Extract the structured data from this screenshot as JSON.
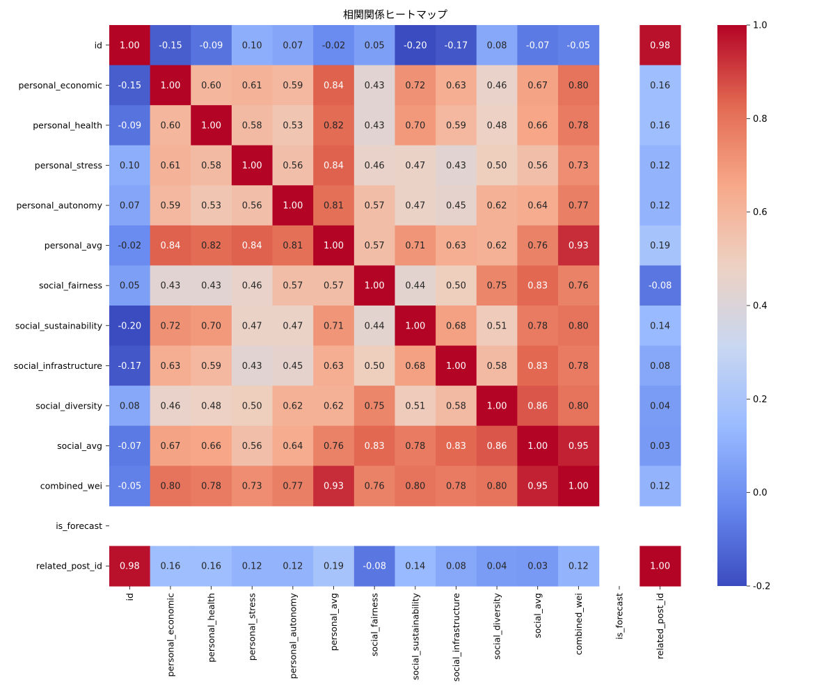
{
  "chart_data": {
    "type": "heatmap",
    "title": "相関関係ヒートマップ",
    "row_labels": [
      "id",
      "personal_economic",
      "personal_health",
      "personal_stress",
      "personal_autonomy",
      "personal_avg",
      "social_fairness",
      "social_sustainability",
      "social_infrastructure",
      "social_diversity",
      "social_avg",
      "combined_wei",
      "is_forecast",
      "related_post_id"
    ],
    "col_labels": [
      "id",
      "personal_economic",
      "personal_health",
      "personal_stress",
      "personal_autonomy",
      "personal_avg",
      "social_fairness",
      "social_sustainability",
      "social_infrastructure",
      "social_diversity",
      "social_avg",
      "combined_wei",
      "is_forecast",
      "related_post_id"
    ],
    "values": [
      [
        1.0,
        -0.15,
        -0.09,
        0.1,
        0.07,
        -0.02,
        0.05,
        -0.2,
        -0.17,
        0.08,
        -0.07,
        -0.05,
        null,
        0.98
      ],
      [
        -0.15,
        1.0,
        0.6,
        0.61,
        0.59,
        0.84,
        0.43,
        0.72,
        0.63,
        0.46,
        0.67,
        0.8,
        null,
        0.16
      ],
      [
        -0.09,
        0.6,
        1.0,
        0.58,
        0.53,
        0.82,
        0.43,
        0.7,
        0.59,
        0.48,
        0.66,
        0.78,
        null,
        0.16
      ],
      [
        0.1,
        0.61,
        0.58,
        1.0,
        0.56,
        0.84,
        0.46,
        0.47,
        0.43,
        0.5,
        0.56,
        0.73,
        null,
        0.12
      ],
      [
        0.07,
        0.59,
        0.53,
        0.56,
        1.0,
        0.81,
        0.57,
        0.47,
        0.45,
        0.62,
        0.64,
        0.77,
        null,
        0.12
      ],
      [
        -0.02,
        0.84,
        0.82,
        0.84,
        0.81,
        1.0,
        0.57,
        0.71,
        0.63,
        0.62,
        0.76,
        0.93,
        null,
        0.19
      ],
      [
        0.05,
        0.43,
        0.43,
        0.46,
        0.57,
        0.57,
        1.0,
        0.44,
        0.5,
        0.75,
        0.83,
        0.76,
        null,
        -0.08
      ],
      [
        -0.2,
        0.72,
        0.7,
        0.47,
        0.47,
        0.71,
        0.44,
        1.0,
        0.68,
        0.51,
        0.78,
        0.8,
        null,
        0.14
      ],
      [
        -0.17,
        0.63,
        0.59,
        0.43,
        0.45,
        0.63,
        0.5,
        0.68,
        1.0,
        0.58,
        0.83,
        0.78,
        null,
        0.08
      ],
      [
        0.08,
        0.46,
        0.48,
        0.5,
        0.62,
        0.62,
        0.75,
        0.51,
        0.58,
        1.0,
        0.86,
        0.8,
        null,
        0.04
      ],
      [
        -0.07,
        0.67,
        0.66,
        0.56,
        0.64,
        0.76,
        0.83,
        0.78,
        0.83,
        0.86,
        1.0,
        0.95,
        null,
        0.03
      ],
      [
        -0.05,
        0.8,
        0.78,
        0.73,
        0.77,
        0.93,
        0.76,
        0.8,
        0.78,
        0.8,
        0.95,
        1.0,
        null,
        0.12
      ],
      [
        null,
        null,
        null,
        null,
        null,
        null,
        null,
        null,
        null,
        null,
        null,
        null,
        null,
        null
      ],
      [
        0.98,
        0.16,
        0.16,
        0.12,
        0.12,
        0.19,
        -0.08,
        0.14,
        0.08,
        0.04,
        0.03,
        0.12,
        null,
        1.0
      ]
    ],
    "vmin": -0.2,
    "vmax": 1.0,
    "colormap": "coolwarm",
    "colormap_stops": [
      "#3b4cc0",
      "#6788ee",
      "#9abbff",
      "#c9d7f0",
      "#edd1c2",
      "#f7a889",
      "#e26952",
      "#b40426"
    ],
    "colorbar_ticks": [
      "1.0",
      "0.8",
      "0.6",
      "0.4",
      "0.2",
      "0.0",
      "-0.2"
    ],
    "colorbar_tick_values": [
      1.0,
      0.8,
      0.6,
      0.4,
      0.2,
      0.0,
      -0.2
    ],
    "annotation_format": "2 decimals",
    "grid": false
  }
}
